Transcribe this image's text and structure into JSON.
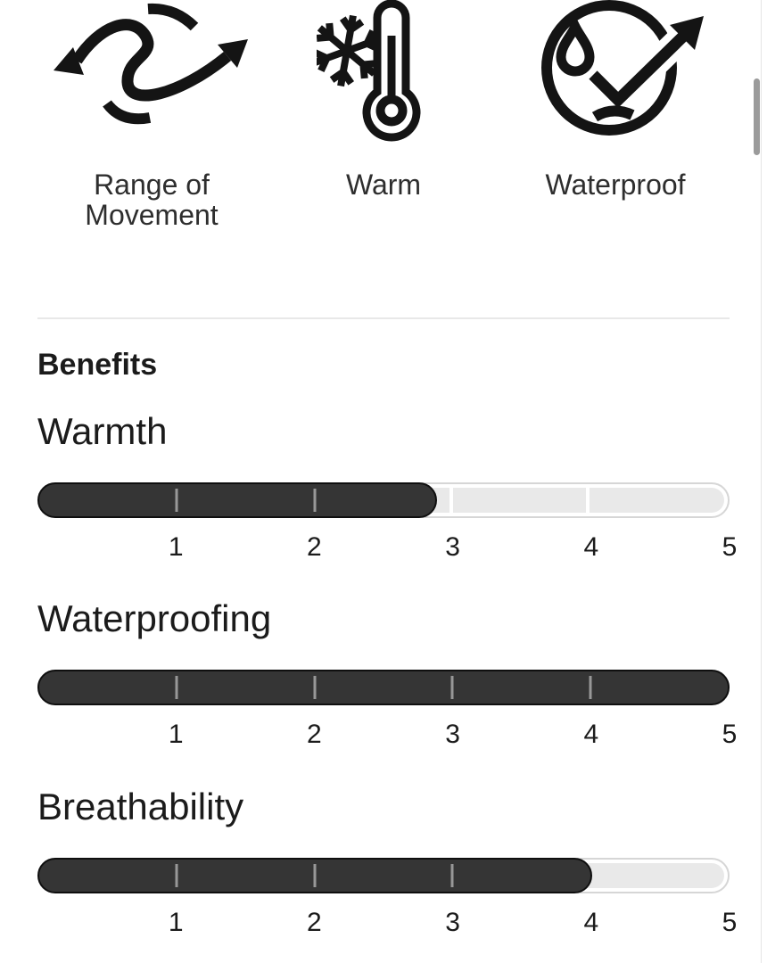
{
  "features": [
    {
      "label": "Range of Movement",
      "icon": "range-of-movement-icon"
    },
    {
      "label": "Warm",
      "icon": "warm-icon"
    },
    {
      "label": "Waterproof",
      "icon": "waterproof-icon"
    }
  ],
  "benefits": {
    "heading": "Benefits",
    "scale_min": 1,
    "scale_max": 5,
    "scale_ticks": [
      "1",
      "2",
      "3",
      "4",
      "5"
    ],
    "items": [
      {
        "label": "Warmth",
        "value": 2.9,
        "max": 5,
        "fill_percent": 57.5
      },
      {
        "label": "Waterproofing",
        "value": 5,
        "max": 5,
        "fill_percent": 100
      },
      {
        "label": "Breathability",
        "value": 4,
        "max": 5,
        "fill_percent": 80
      }
    ]
  },
  "colors": {
    "bar_fill": "#353535",
    "bar_fill_border": "#0f0f0f",
    "bar_track": "#e9e9e9",
    "bar_track_border": "#d6d6d6",
    "tick_on_fill": "#989898",
    "tick_on_track": "#ffffff",
    "divider": "#e8e8e8",
    "text": "#1b1b1b",
    "icon": "#141414"
  }
}
